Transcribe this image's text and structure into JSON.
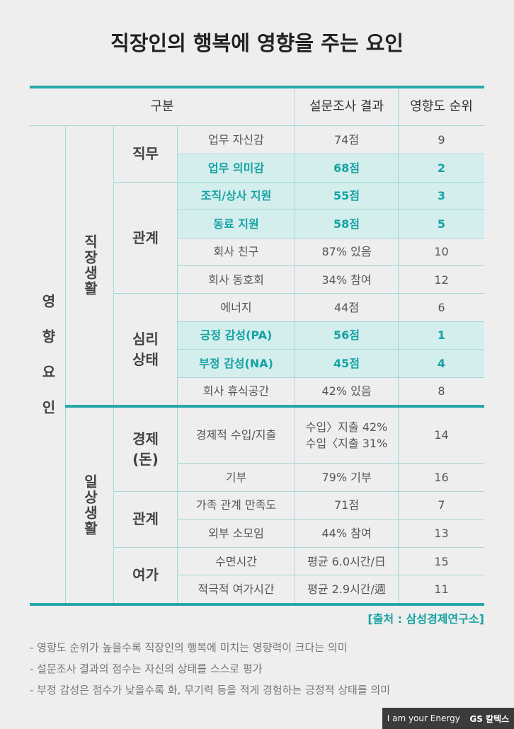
{
  "title": "직장인의 행복에 영향을 주는 요인",
  "table": {
    "headers": [
      "구분",
      "설문조사 결과",
      "영향도 순위"
    ],
    "factor": "영향요인",
    "groups": [
      {
        "name": "직장생활",
        "subgroups": [
          {
            "name": "직무",
            "rows": [
              {
                "item": "업무 자신감",
                "result": "74점",
                "rank": 9,
                "highlight": false
              },
              {
                "item": "업무 의미감",
                "result": "68점",
                "rank": 2,
                "highlight": true
              }
            ]
          },
          {
            "name": "관계",
            "rows": [
              {
                "item": "조직/상사 지원",
                "result": "55점",
                "rank": 3,
                "highlight": true
              },
              {
                "item": "동료 지원",
                "result": "58점",
                "rank": 5,
                "highlight": true
              },
              {
                "item": "회사 친구",
                "result": "87% 있음",
                "rank": 10,
                "highlight": false
              },
              {
                "item": "회사 동호회",
                "result": "34% 참여",
                "rank": 12,
                "highlight": false
              }
            ]
          },
          {
            "name": "심리\n상태",
            "rows": [
              {
                "item": "에너지",
                "result": "44점",
                "rank": 6,
                "highlight": false
              },
              {
                "item": "긍정 감성(PA)",
                "result": "56점",
                "rank": 1,
                "highlight": true
              },
              {
                "item": "부정 감성(NA)",
                "result": "45점",
                "rank": 4,
                "highlight": true
              },
              {
                "item": "회사 휴식공간",
                "result": "42% 있음",
                "rank": 8,
                "highlight": false
              }
            ]
          }
        ]
      },
      {
        "name": "일상생활",
        "subgroups": [
          {
            "name": "경제\n(돈)",
            "rows": [
              {
                "item": "경제적 수입/지출",
                "result": "수입〉지출 42%\n수입〈지출 31%",
                "rank": 14,
                "highlight": false
              },
              {
                "item": "기부",
                "result": "79% 기부",
                "rank": 16,
                "highlight": false
              }
            ]
          },
          {
            "name": "관계",
            "rows": [
              {
                "item": "가족 관계 만족도",
                "result": "71점",
                "rank": 7,
                "highlight": false
              },
              {
                "item": "외부 소모임",
                "result": "44% 참여",
                "rank": 13,
                "highlight": false
              }
            ]
          },
          {
            "name": "여가",
            "rows": [
              {
                "item": "수면시간",
                "result": "평균 6.0시간/日",
                "rank": 15,
                "highlight": false
              },
              {
                "item": "적극적 여가시간",
                "result": "평균 2.9시간/週",
                "rank": 11,
                "highlight": false
              }
            ]
          }
        ]
      }
    ]
  },
  "source": "[출처 : 삼성경제연구소]",
  "notes": [
    "- 영향도 순위가 높을수록 직장인의 행복에 미치는 영향력이 크다는 의미",
    "- 설문조사 결과의 점수는 자신의 상태를 스스로 평가",
    "- 부정 감성은 점수가 낮을수록 화, 무기력 등을 적게 경험하는 긍정적 상태를 의미"
  ],
  "footer": {
    "slogan": "I am your Energy",
    "brand": "GS 칼텍스"
  }
}
